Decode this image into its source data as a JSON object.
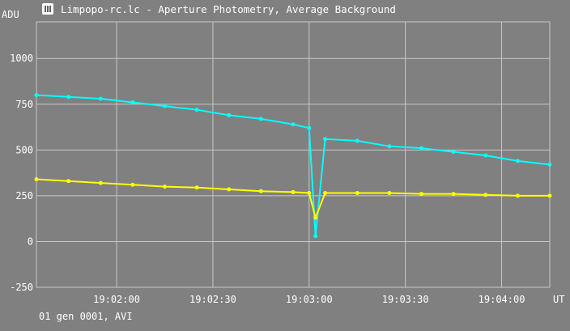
{
  "title": "Limpopo-rc.lc - Aperture Photometry, Average Background",
  "footer": "01 gen 0001, AVI",
  "colors": {
    "background": "#808080",
    "grid": "#c8c8c8",
    "series_1": "#00ffff",
    "series_2": "#ffff00"
  },
  "icons": {
    "app": "app-logo-icon"
  },
  "chart_data": {
    "type": "scatter",
    "title": "Limpopo-rc.lc - Aperture Photometry, Average Background",
    "ylabel": "ADU",
    "xlabel": "UT",
    "xlim": [
      "19:01:35",
      "19:04:15"
    ],
    "ylim": [
      -250,
      1200
    ],
    "x_ticks": [
      "19:02:00",
      "19:02:30",
      "19:03:00",
      "19:03:30",
      "19:04:00"
    ],
    "y_ticks": [
      -250,
      0,
      250,
      500,
      750,
      1000
    ],
    "grid": true,
    "points_connected": true,
    "series": [
      {
        "color": "#00ffff",
        "x": [
          "19:01:35",
          "19:01:45",
          "19:01:55",
          "19:02:05",
          "19:02:15",
          "19:02:25",
          "19:02:35",
          "19:02:45",
          "19:02:55",
          "19:03:00",
          "19:03:02",
          "19:03:05",
          "19:03:15",
          "19:03:25",
          "19:03:35",
          "19:03:45",
          "19:03:55",
          "19:04:05",
          "19:04:15"
        ],
        "y": [
          800,
          790,
          780,
          760,
          740,
          720,
          690,
          670,
          640,
          620,
          30,
          560,
          550,
          520,
          510,
          490,
          470,
          440,
          420
        ]
      },
      {
        "color": "#ffff00",
        "x": [
          "19:01:35",
          "19:01:45",
          "19:01:55",
          "19:02:05",
          "19:02:15",
          "19:02:25",
          "19:02:35",
          "19:02:45",
          "19:02:55",
          "19:03:00",
          "19:03:02",
          "19:03:05",
          "19:03:15",
          "19:03:25",
          "19:03:35",
          "19:03:45",
          "19:03:55",
          "19:04:05",
          "19:04:15"
        ],
        "y": [
          340,
          330,
          320,
          310,
          300,
          295,
          285,
          275,
          270,
          265,
          130,
          265,
          265,
          265,
          260,
          260,
          255,
          250,
          250
        ]
      }
    ]
  }
}
